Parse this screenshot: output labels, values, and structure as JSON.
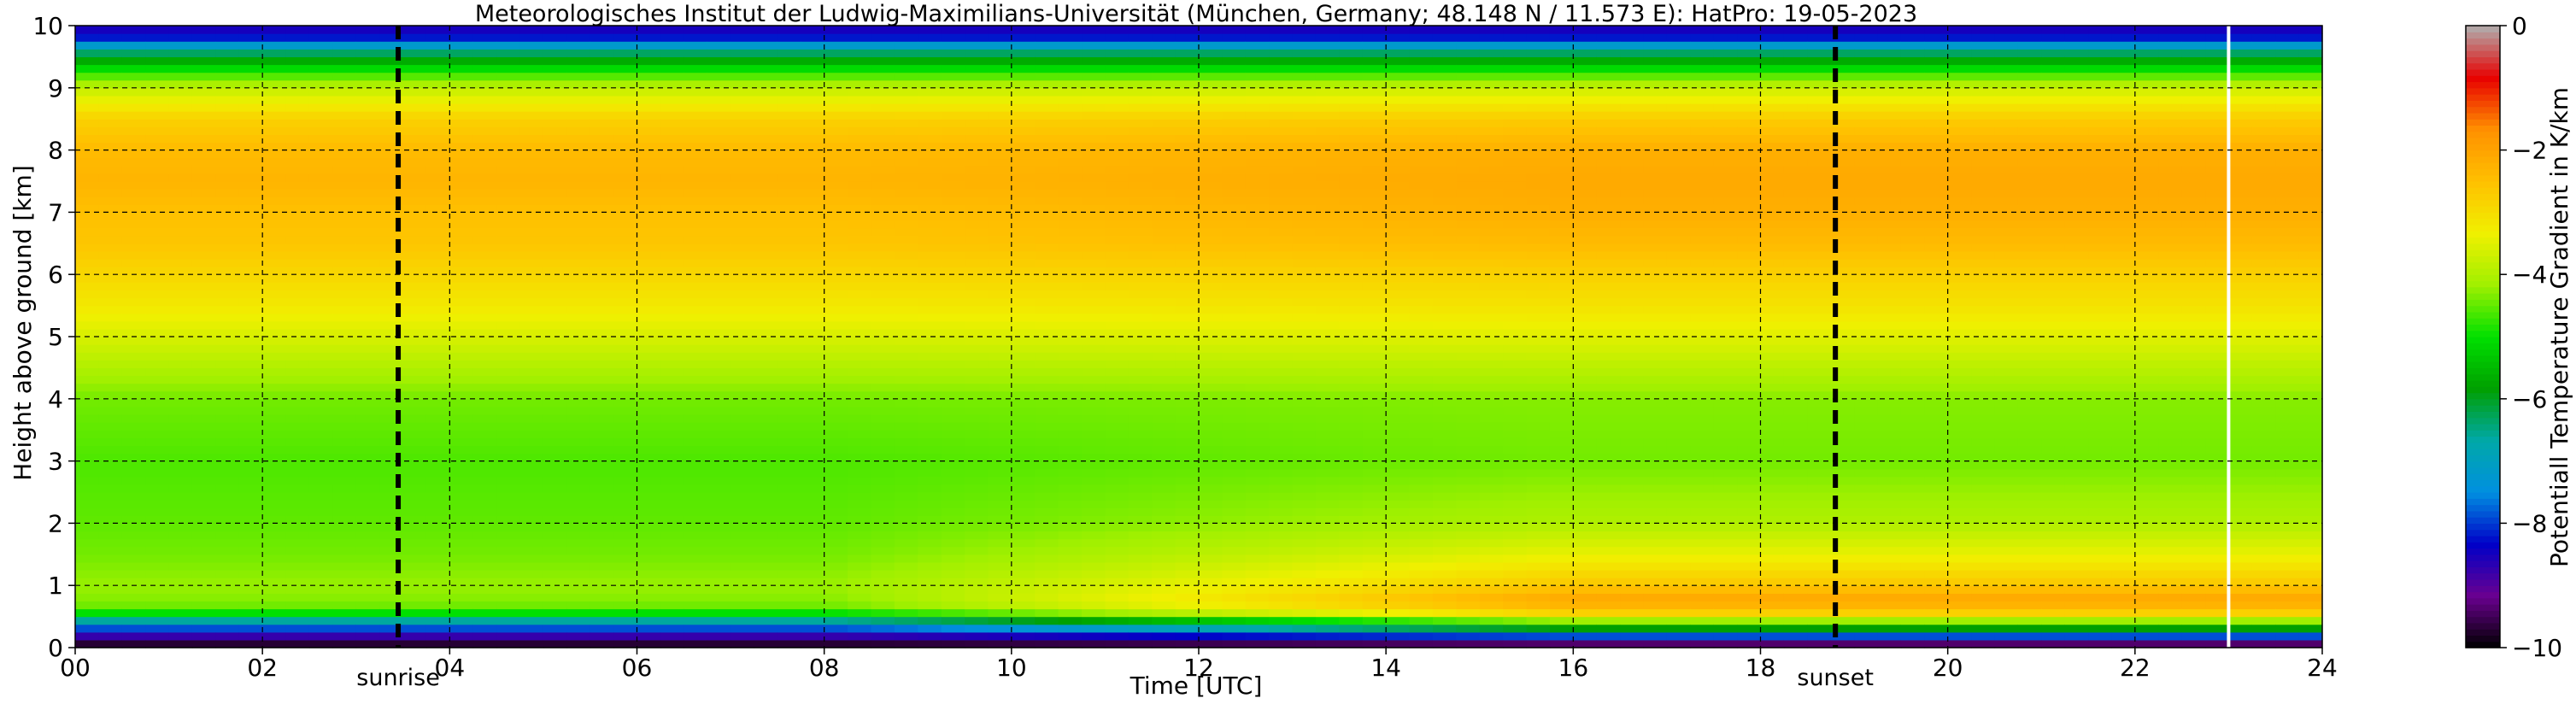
{
  "chart_data": {
    "type": "heatmap",
    "title": "Meteorologisches Institut der Ludwig-Maximilians-Universität (München, Germany; 48.148 N / 11.573 E):    HatPro: 19-05-2023",
    "xlabel": "Time [UTC]",
    "ylabel": "Height above ground [km]",
    "xlim": [
      0,
      24
    ],
    "ylim": [
      0,
      10
    ],
    "x_ticks": [
      "00",
      "02",
      "04",
      "06",
      "08",
      "10",
      "12",
      "14",
      "16",
      "18",
      "20",
      "22",
      "24"
    ],
    "y_ticks": [
      "0",
      "1",
      "2",
      "3",
      "4",
      "5",
      "6",
      "7",
      "8",
      "9",
      "10"
    ],
    "grid": "dashed",
    "colorbar": {
      "label": "Potentiall Temperature Gradient in K/km",
      "range": [
        -10,
        0
      ],
      "ticks": [
        "−10",
        "−8",
        "−6",
        "−4",
        "−2",
        "0"
      ],
      "colors": [
        "#000000",
        "#6a0090",
        "#0000c8",
        "#0090e0",
        "#00a8a8",
        "#00a000",
        "#00e000",
        "#a0f000",
        "#f0f000",
        "#ffc000",
        "#ff9000",
        "#e80000",
        "#b0b0b0"
      ]
    },
    "markers": [
      {
        "label": "sunrise",
        "time": 3.45
      },
      {
        "label": "sunset",
        "time": 18.8
      }
    ],
    "missing_data_time": 23.0,
    "approx_profile": {
      "heights_km": [
        0.05,
        0.15,
        0.3,
        0.45,
        0.6,
        0.8,
        1.0,
        1.5,
        2.0,
        3.0,
        4.0,
        4.5,
        5.0,
        5.5,
        6.0,
        6.5,
        7.0,
        7.5,
        8.0,
        8.5,
        9.0,
        9.3,
        9.6,
        9.85
      ],
      "morning_K_per_km": [
        -9.8,
        -9.0,
        -8.0,
        -6.5,
        -4.5,
        -4.3,
        -4.2,
        -4.4,
        -4.5,
        -4.6,
        -4.4,
        -4.0,
        -3.6,
        -3.2,
        -2.9,
        -2.6,
        -2.5,
        -2.3,
        -2.4,
        -2.8,
        -3.8,
        -5.0,
        -6.5,
        -8.5
      ],
      "evening_K_per_km": [
        -9.5,
        -8.5,
        -6.0,
        -4.0,
        -2.4,
        -2.1,
        -2.6,
        -3.4,
        -4.0,
        -4.4,
        -4.3,
        -3.9,
        -3.5,
        -3.1,
        -2.8,
        -2.4,
        -2.2,
        -2.1,
        -2.2,
        -2.7,
        -3.7,
        -5.0,
        -6.5,
        -8.5
      ]
    }
  }
}
